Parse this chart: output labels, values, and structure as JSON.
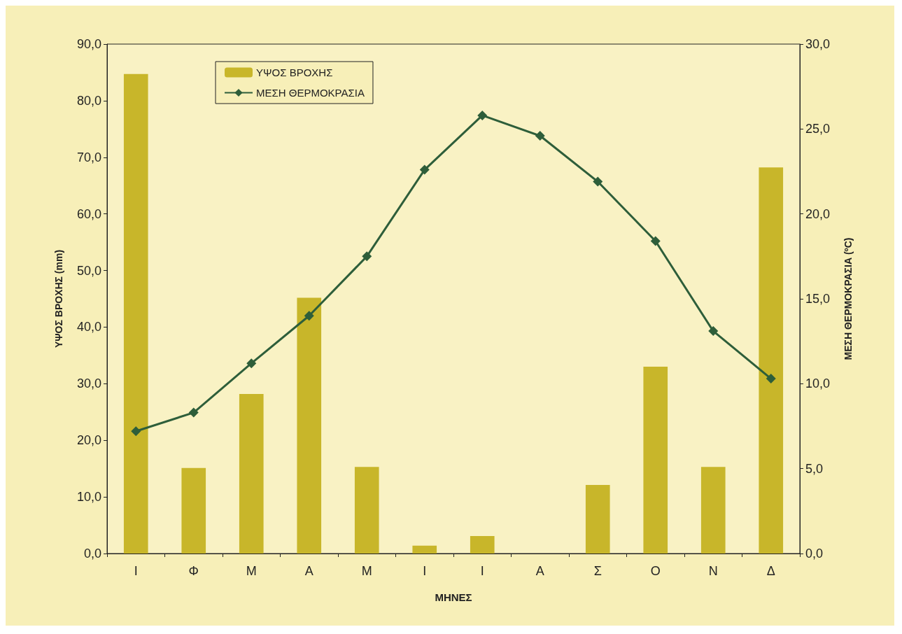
{
  "chart_data": {
    "type": "bar",
    "xlabel": "ΜΗΝΕΣ",
    "ylabel": "ΥΨΟΣ ΒΡΟΧΗΣ (mm)",
    "y2label": "ΜΕΣΗ ΘΕΡΜΟΚΡΑΣΙΑ (ºC)",
    "categories": [
      "Ι",
      "Φ",
      "Μ",
      "Α",
      "Μ",
      "Ι",
      "Ι",
      "Α",
      "Σ",
      "Ο",
      "Ν",
      "Δ"
    ],
    "series": [
      {
        "name": "ΥΨΟΣ ΒΡΟΧΗΣ",
        "color": "#c8b62a",
        "values": [
          84.7,
          15.1,
          28.2,
          45.2,
          15.3,
          1.4,
          3.1,
          0,
          12.1,
          33.0,
          15.3,
          68.2
        ]
      },
      {
        "name": "ΜΕΣΗ ΘΕΡΜΟΚΡΑΣΙΑ",
        "type": "line",
        "axis": "y2",
        "color": "#2e5e3a",
        "marker": "diamond",
        "values": [
          7.2,
          8.3,
          11.2,
          14.0,
          17.5,
          22.6,
          25.8,
          24.6,
          21.9,
          18.4,
          13.1,
          10.3
        ]
      }
    ],
    "ylim": [
      0,
      90
    ],
    "yticks": [
      {
        "value": 0,
        "label": "0,0"
      },
      {
        "value": 10,
        "label": "10,0"
      },
      {
        "value": 20,
        "label": "20,0"
      },
      {
        "value": 30,
        "label": "30,0"
      },
      {
        "value": 40,
        "label": "40,0"
      },
      {
        "value": 50,
        "label": "50,0"
      },
      {
        "value": 60,
        "label": "60,0"
      },
      {
        "value": 70,
        "label": "70,0"
      },
      {
        "value": 80,
        "label": "80,0"
      },
      {
        "value": 90,
        "label": "90,0"
      }
    ],
    "y2lim": [
      0,
      30
    ],
    "y2ticks": [
      {
        "value": 0,
        "label": "0,0"
      },
      {
        "value": 5,
        "label": "5,0"
      },
      {
        "value": 10,
        "label": "10,0"
      },
      {
        "value": 15,
        "label": "15,0"
      },
      {
        "value": 20,
        "label": "20,0"
      },
      {
        "value": 25,
        "label": "25,0"
      },
      {
        "value": 30,
        "label": "30,0"
      }
    ],
    "grid": false,
    "legend": "top left"
  }
}
